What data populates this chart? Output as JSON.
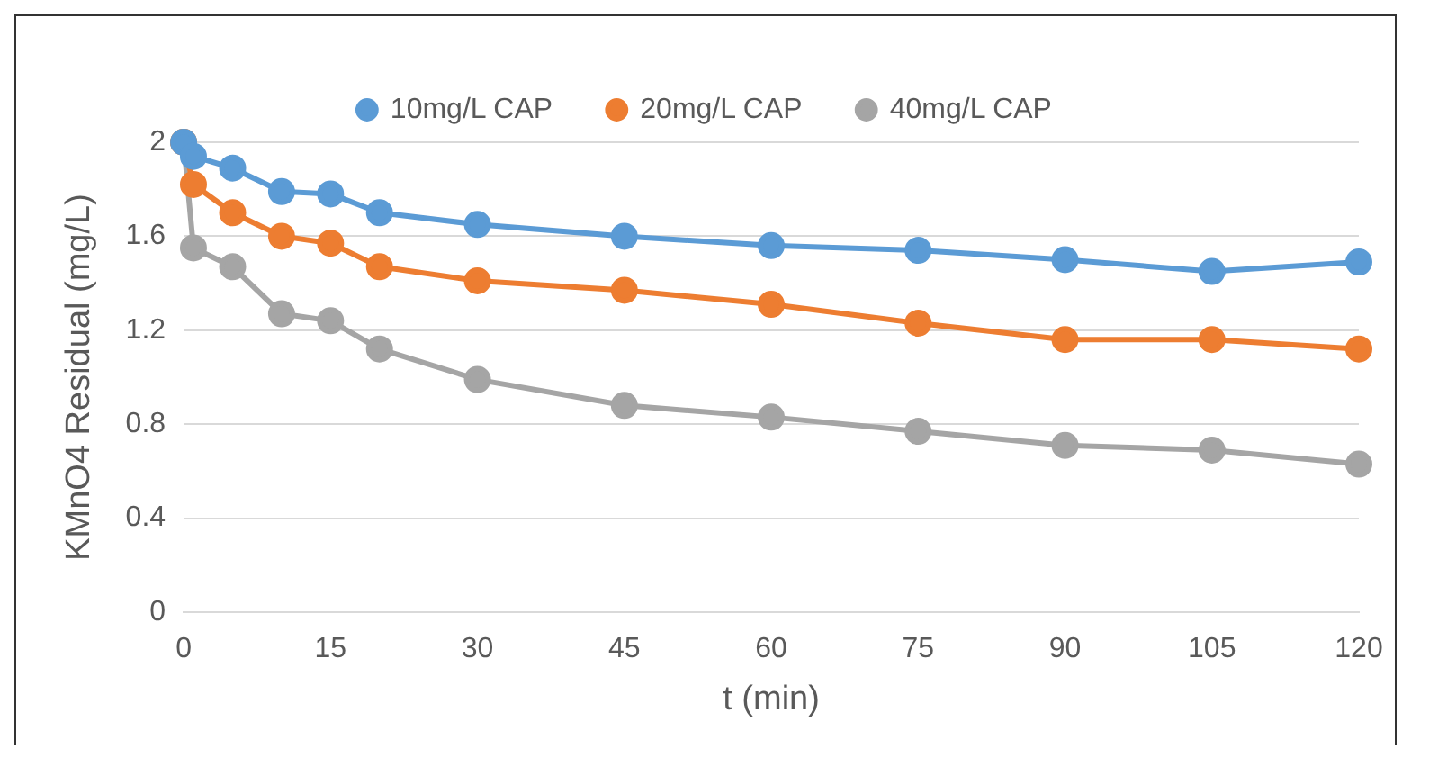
{
  "chart_data": {
    "type": "line",
    "xlabel": "t (min)",
    "ylabel": "KMnO4 Residual (mg/L)",
    "x": [
      0,
      1,
      5,
      10,
      15,
      20,
      30,
      45,
      60,
      75,
      90,
      105,
      120
    ],
    "xlim": [
      0,
      120
    ],
    "xticks": [
      0,
      15,
      30,
      45,
      60,
      75,
      90,
      105,
      120
    ],
    "ylim": [
      0,
      2
    ],
    "yticks": [
      0,
      0.4,
      0.8,
      1.2,
      1.6,
      2
    ],
    "grid": "y",
    "legend": "top",
    "marker": "circle",
    "line_style": "solid",
    "series": [
      {
        "name": "10mg/L CAP",
        "color": "#5b9bd5",
        "values": [
          2.0,
          1.94,
          1.89,
          1.79,
          1.78,
          1.7,
          1.65,
          1.6,
          1.56,
          1.54,
          1.5,
          1.45,
          1.49
        ]
      },
      {
        "name": "20mg/L CAP",
        "color": "#ed7d31",
        "values": [
          2.0,
          1.82,
          1.7,
          1.6,
          1.57,
          1.47,
          1.41,
          1.37,
          1.31,
          1.23,
          1.16,
          1.16,
          1.12
        ]
      },
      {
        "name": "40mg/L CAP",
        "color": "#a5a5a5",
        "values": [
          2.0,
          1.55,
          1.47,
          1.27,
          1.24,
          1.12,
          0.99,
          0.88,
          0.83,
          0.77,
          0.71,
          0.69,
          0.63
        ]
      }
    ]
  }
}
